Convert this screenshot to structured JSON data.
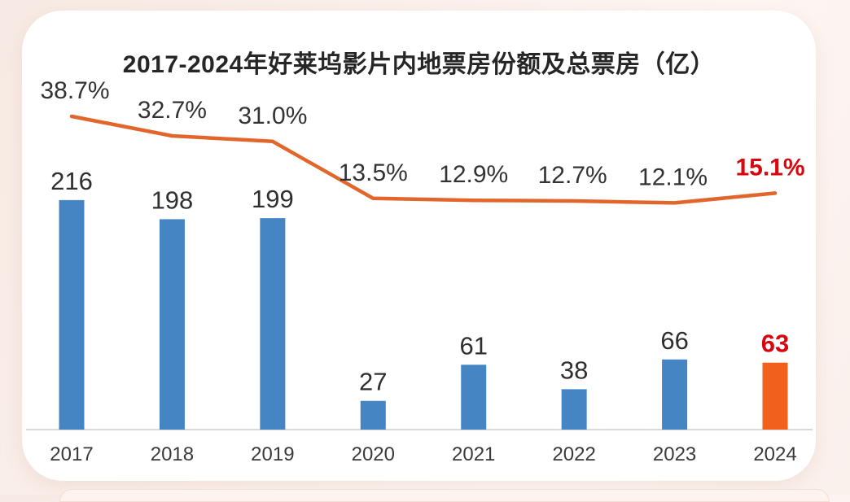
{
  "chart_data": {
    "type": "bar+line combo",
    "title": "2017-2024年好莱坞影片内地票房份额及总票房（亿）",
    "categories": [
      "2017",
      "2018",
      "2019",
      "2020",
      "2021",
      "2022",
      "2023",
      "2024"
    ],
    "series": [
      {
        "type": "bar",
        "role": "total-box-office-billion",
        "values": [
          216,
          198,
          199,
          27,
          61,
          38,
          66,
          63
        ],
        "labels": [
          "216",
          "198",
          "199",
          "27",
          "61",
          "38",
          "66",
          "63"
        ]
      },
      {
        "type": "line",
        "role": "market-share-percent",
        "values": [
          38.7,
          32.7,
          31.0,
          13.5,
          12.9,
          12.7,
          12.1,
          15.1
        ],
        "labels": [
          "38.7%",
          "32.7%",
          "31.0%",
          "13.5%",
          "12.9%",
          "12.7%",
          "12.1%",
          "15.1%"
        ]
      }
    ],
    "highlight_index": 7,
    "colors": {
      "bar": "#4685c4",
      "bar_highlight": "#f2611c",
      "line": "#e2662c",
      "value_label": "#2f2f2f",
      "pct_label": "#333333",
      "highlight_label": "#d8070f",
      "year_label": "#3a3a3a",
      "axis": "#d9d9d9",
      "title": "#262626"
    },
    "layout_hints": {
      "grid": "off",
      "y_axis": "hidden",
      "legend": "none",
      "value_labels_position": "above bars",
      "pct_labels_position": "above line points"
    }
  }
}
